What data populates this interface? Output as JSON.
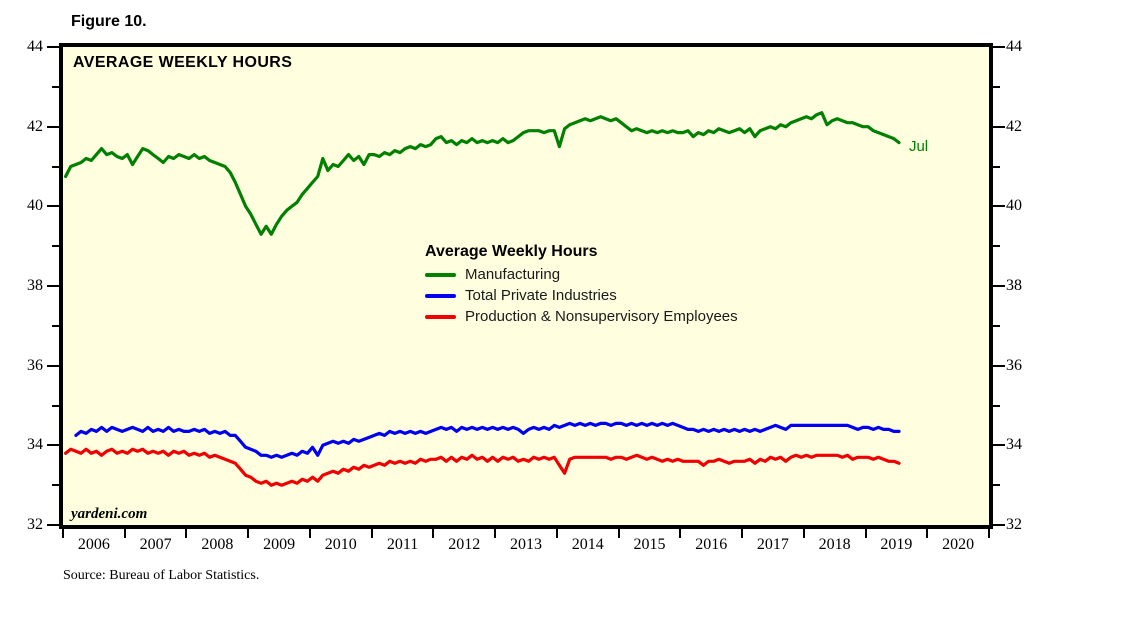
{
  "figure_label": "Figure 10.",
  "source": "Source: Bureau of Labor Statistics.",
  "watermark": "yardeni.com",
  "chart_data": {
    "type": "line",
    "title": "AVERAGE WEEKLY HOURS",
    "last_point_label": "Jul",
    "background": "#FFFFE0",
    "grid": "off",
    "legend": {
      "title": "Average Weekly Hours",
      "position": "center"
    },
    "y_axis": {
      "min": 32,
      "max": 44,
      "major_step": 2,
      "minor_step": 1,
      "tick_labels": [
        "32",
        "34",
        "36",
        "38",
        "40",
        "42",
        "44"
      ],
      "sides": "both"
    },
    "x_axis": {
      "labels": [
        "2006",
        "2007",
        "2008",
        "2009",
        "2010",
        "2011",
        "2012",
        "2013",
        "2014",
        "2015",
        "2016",
        "2017",
        "2018",
        "2019",
        "2020"
      ],
      "frequency": "monthly",
      "first_point": "Jan 2006",
      "last_point": "Jul 2019"
    },
    "series": [
      {
        "name": "Manufacturing",
        "color": "#008000",
        "values": [
          40.75,
          41.0,
          41.05,
          41.1,
          41.2,
          41.15,
          41.3,
          41.45,
          41.3,
          41.35,
          41.25,
          41.2,
          41.3,
          41.05,
          41.25,
          41.45,
          41.4,
          41.3,
          41.2,
          41.1,
          41.25,
          41.2,
          41.3,
          41.25,
          41.2,
          41.3,
          41.2,
          41.25,
          41.15,
          41.1,
          41.05,
          41.0,
          40.85,
          40.6,
          40.3,
          40.0,
          39.8,
          39.55,
          39.3,
          39.5,
          39.3,
          39.55,
          39.75,
          39.9,
          40.0,
          40.1,
          40.3,
          40.45,
          40.6,
          40.75,
          41.2,
          40.9,
          41.05,
          41.0,
          41.15,
          41.3,
          41.15,
          41.25,
          41.05,
          41.3,
          41.3,
          41.25,
          41.35,
          41.3,
          41.4,
          41.35,
          41.45,
          41.5,
          41.45,
          41.55,
          41.5,
          41.55,
          41.7,
          41.75,
          41.6,
          41.65,
          41.55,
          41.65,
          41.6,
          41.7,
          41.6,
          41.65,
          41.6,
          41.65,
          41.6,
          41.7,
          41.6,
          41.65,
          41.75,
          41.85,
          41.9,
          41.9,
          41.9,
          41.85,
          41.9,
          41.9,
          41.5,
          41.95,
          42.05,
          42.1,
          42.15,
          42.2,
          42.15,
          42.2,
          42.25,
          42.2,
          42.15,
          42.2,
          42.1,
          42.0,
          41.9,
          41.95,
          41.9,
          41.85,
          41.9,
          41.85,
          41.9,
          41.85,
          41.9,
          41.85,
          41.85,
          41.9,
          41.75,
          41.85,
          41.8,
          41.9,
          41.85,
          41.95,
          41.9,
          41.85,
          41.9,
          41.95,
          41.85,
          41.95,
          41.75,
          41.9,
          41.95,
          42.0,
          41.95,
          42.05,
          42.0,
          42.1,
          42.15,
          42.2,
          42.25,
          42.2,
          42.3,
          42.35,
          42.05,
          42.15,
          42.2,
          42.15,
          42.1,
          42.1,
          42.05,
          42.0,
          42.0,
          41.9,
          41.85,
          41.8,
          41.75,
          41.7,
          41.6
        ]
      },
      {
        "name": "Total Private Industries",
        "color": "#0000F0",
        "values": [
          null,
          null,
          34.25,
          34.35,
          34.3,
          34.4,
          34.35,
          34.45,
          34.35,
          34.45,
          34.4,
          34.35,
          34.4,
          34.45,
          34.4,
          34.35,
          34.45,
          34.35,
          34.4,
          34.35,
          34.45,
          34.35,
          34.4,
          34.35,
          34.35,
          34.4,
          34.35,
          34.4,
          34.3,
          34.35,
          34.3,
          34.35,
          34.25,
          34.25,
          34.1,
          33.95,
          33.9,
          33.85,
          33.75,
          33.75,
          33.7,
          33.75,
          33.7,
          33.75,
          33.8,
          33.75,
          33.85,
          33.8,
          33.95,
          33.75,
          34.0,
          34.05,
          34.1,
          34.05,
          34.1,
          34.05,
          34.15,
          34.1,
          34.15,
          34.2,
          34.25,
          34.3,
          34.25,
          34.35,
          34.3,
          34.35,
          34.3,
          34.35,
          34.3,
          34.35,
          34.3,
          34.35,
          34.4,
          34.45,
          34.4,
          34.45,
          34.35,
          34.45,
          34.4,
          34.45,
          34.4,
          34.45,
          34.4,
          34.45,
          34.4,
          34.45,
          34.4,
          34.45,
          34.4,
          34.3,
          34.4,
          34.45,
          34.4,
          34.45,
          34.4,
          34.5,
          34.45,
          34.5,
          34.55,
          34.5,
          34.55,
          34.5,
          34.55,
          34.5,
          34.55,
          34.55,
          34.5,
          34.55,
          34.55,
          34.5,
          34.55,
          34.5,
          34.55,
          34.5,
          34.55,
          34.5,
          34.55,
          34.5,
          34.55,
          34.5,
          34.45,
          34.4,
          34.4,
          34.35,
          34.4,
          34.35,
          34.4,
          34.35,
          34.4,
          34.35,
          34.4,
          34.35,
          34.4,
          34.35,
          34.4,
          34.35,
          34.4,
          34.45,
          34.5,
          34.45,
          34.4,
          34.5,
          34.5,
          34.5,
          34.5,
          34.5,
          34.5,
          34.5,
          34.5,
          34.5,
          34.5,
          34.5,
          34.5,
          34.45,
          34.4,
          34.45,
          34.45,
          34.4,
          34.45,
          34.4,
          34.4,
          34.35,
          34.35
        ]
      },
      {
        "name": "Production & Nonsupervisory Employees",
        "color": "#F00000",
        "values": [
          33.8,
          33.9,
          33.85,
          33.8,
          33.9,
          33.8,
          33.85,
          33.75,
          33.85,
          33.9,
          33.8,
          33.85,
          33.8,
          33.9,
          33.85,
          33.9,
          33.8,
          33.85,
          33.8,
          33.85,
          33.75,
          33.85,
          33.8,
          33.85,
          33.75,
          33.8,
          33.75,
          33.8,
          33.7,
          33.75,
          33.7,
          33.65,
          33.6,
          33.55,
          33.4,
          33.25,
          33.2,
          33.1,
          33.05,
          33.1,
          33.0,
          33.05,
          33.0,
          33.05,
          33.1,
          33.05,
          33.15,
          33.1,
          33.2,
          33.1,
          33.25,
          33.3,
          33.35,
          33.3,
          33.4,
          33.35,
          33.45,
          33.4,
          33.5,
          33.45,
          33.5,
          33.55,
          33.5,
          33.6,
          33.55,
          33.6,
          33.55,
          33.6,
          33.55,
          33.65,
          33.6,
          33.65,
          33.65,
          33.7,
          33.6,
          33.7,
          33.6,
          33.7,
          33.65,
          33.75,
          33.65,
          33.7,
          33.6,
          33.7,
          33.6,
          33.7,
          33.65,
          33.7,
          33.6,
          33.65,
          33.6,
          33.7,
          33.65,
          33.7,
          33.65,
          33.7,
          33.5,
          33.3,
          33.65,
          33.7,
          33.7,
          33.7,
          33.7,
          33.7,
          33.7,
          33.7,
          33.65,
          33.7,
          33.7,
          33.65,
          33.7,
          33.75,
          33.7,
          33.65,
          33.7,
          33.65,
          33.6,
          33.65,
          33.6,
          33.65,
          33.6,
          33.6,
          33.6,
          33.6,
          33.5,
          33.6,
          33.6,
          33.65,
          33.6,
          33.55,
          33.6,
          33.6,
          33.6,
          33.65,
          33.55,
          33.65,
          33.6,
          33.7,
          33.65,
          33.7,
          33.6,
          33.7,
          33.75,
          33.7,
          33.75,
          33.7,
          33.75,
          33.75,
          33.75,
          33.75,
          33.75,
          33.7,
          33.75,
          33.65,
          33.7,
          33.7,
          33.7,
          33.65,
          33.7,
          33.65,
          33.6,
          33.6,
          33.55
        ]
      }
    ]
  }
}
